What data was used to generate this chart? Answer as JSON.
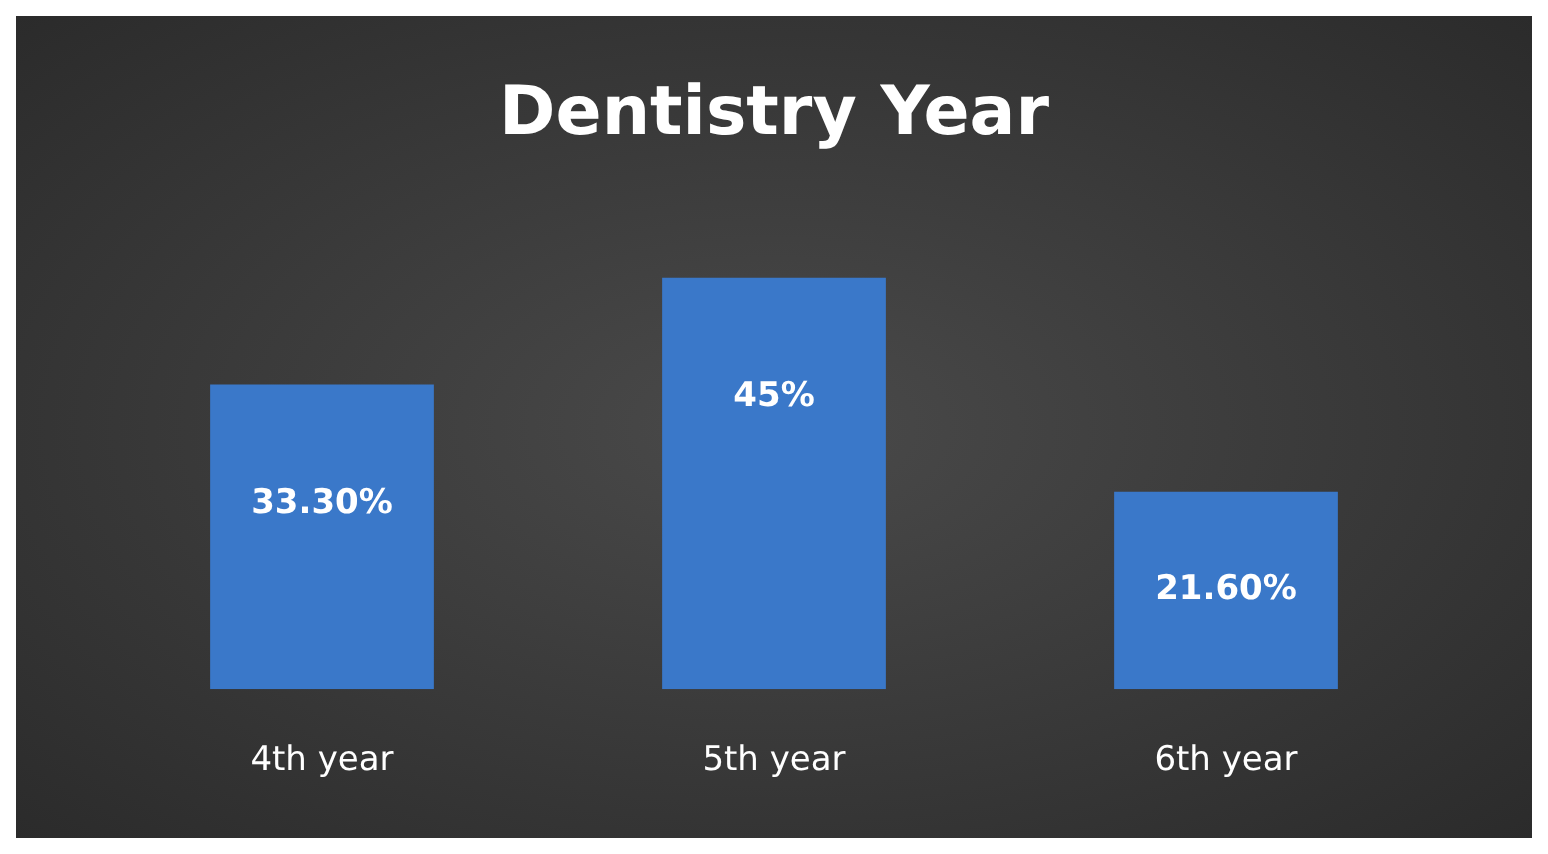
{
  "chart_data": {
    "type": "bar",
    "title": "Dentistry Year",
    "categories": [
      "4th year",
      "5th year",
      "6th year"
    ],
    "values": [
      33.3,
      45,
      21.6
    ],
    "value_labels": [
      "33.30%",
      "45%",
      "21.60%"
    ],
    "color": "#3a78c9",
    "grid": false,
    "legend": false
  }
}
